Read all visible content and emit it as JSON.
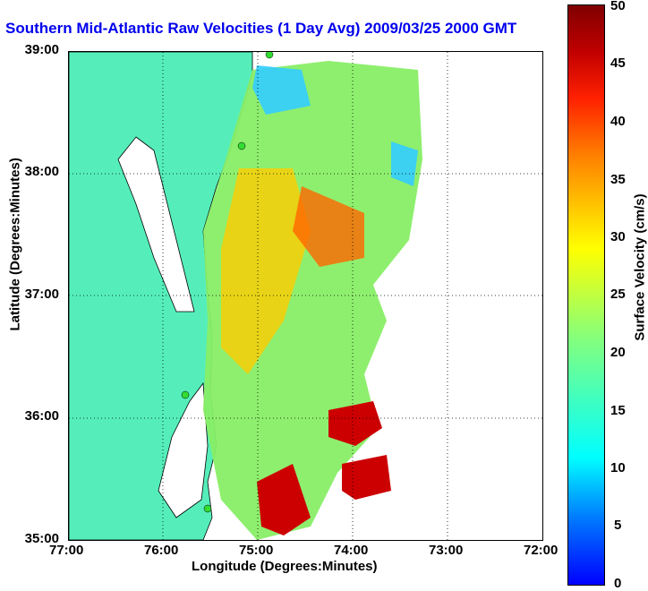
{
  "title": "Southern Mid-Atlantic Raw Velocities (1 Day Avg) 2009/03/25 2000 GMT",
  "axes": {
    "xlabel": "Longitude (Degrees:Minutes)",
    "ylabel": "Latitude (Degrees:Minutes)",
    "xticks": [
      "77:00",
      "76:00",
      "75:00",
      "74:00",
      "73:00",
      "72:00"
    ],
    "yticks": [
      "39:00",
      "38:00",
      "37:00",
      "36:00",
      "35:00"
    ]
  },
  "colorbar": {
    "label": "Surface Velocity (cm/s)",
    "ticks": [
      "50",
      "45",
      "40",
      "35",
      "30",
      "25",
      "20",
      "15",
      "10",
      "5",
      "0"
    ]
  },
  "colors": {
    "land": "#55eebb",
    "title": "#0000ee",
    "station": "#33dd33"
  }
}
